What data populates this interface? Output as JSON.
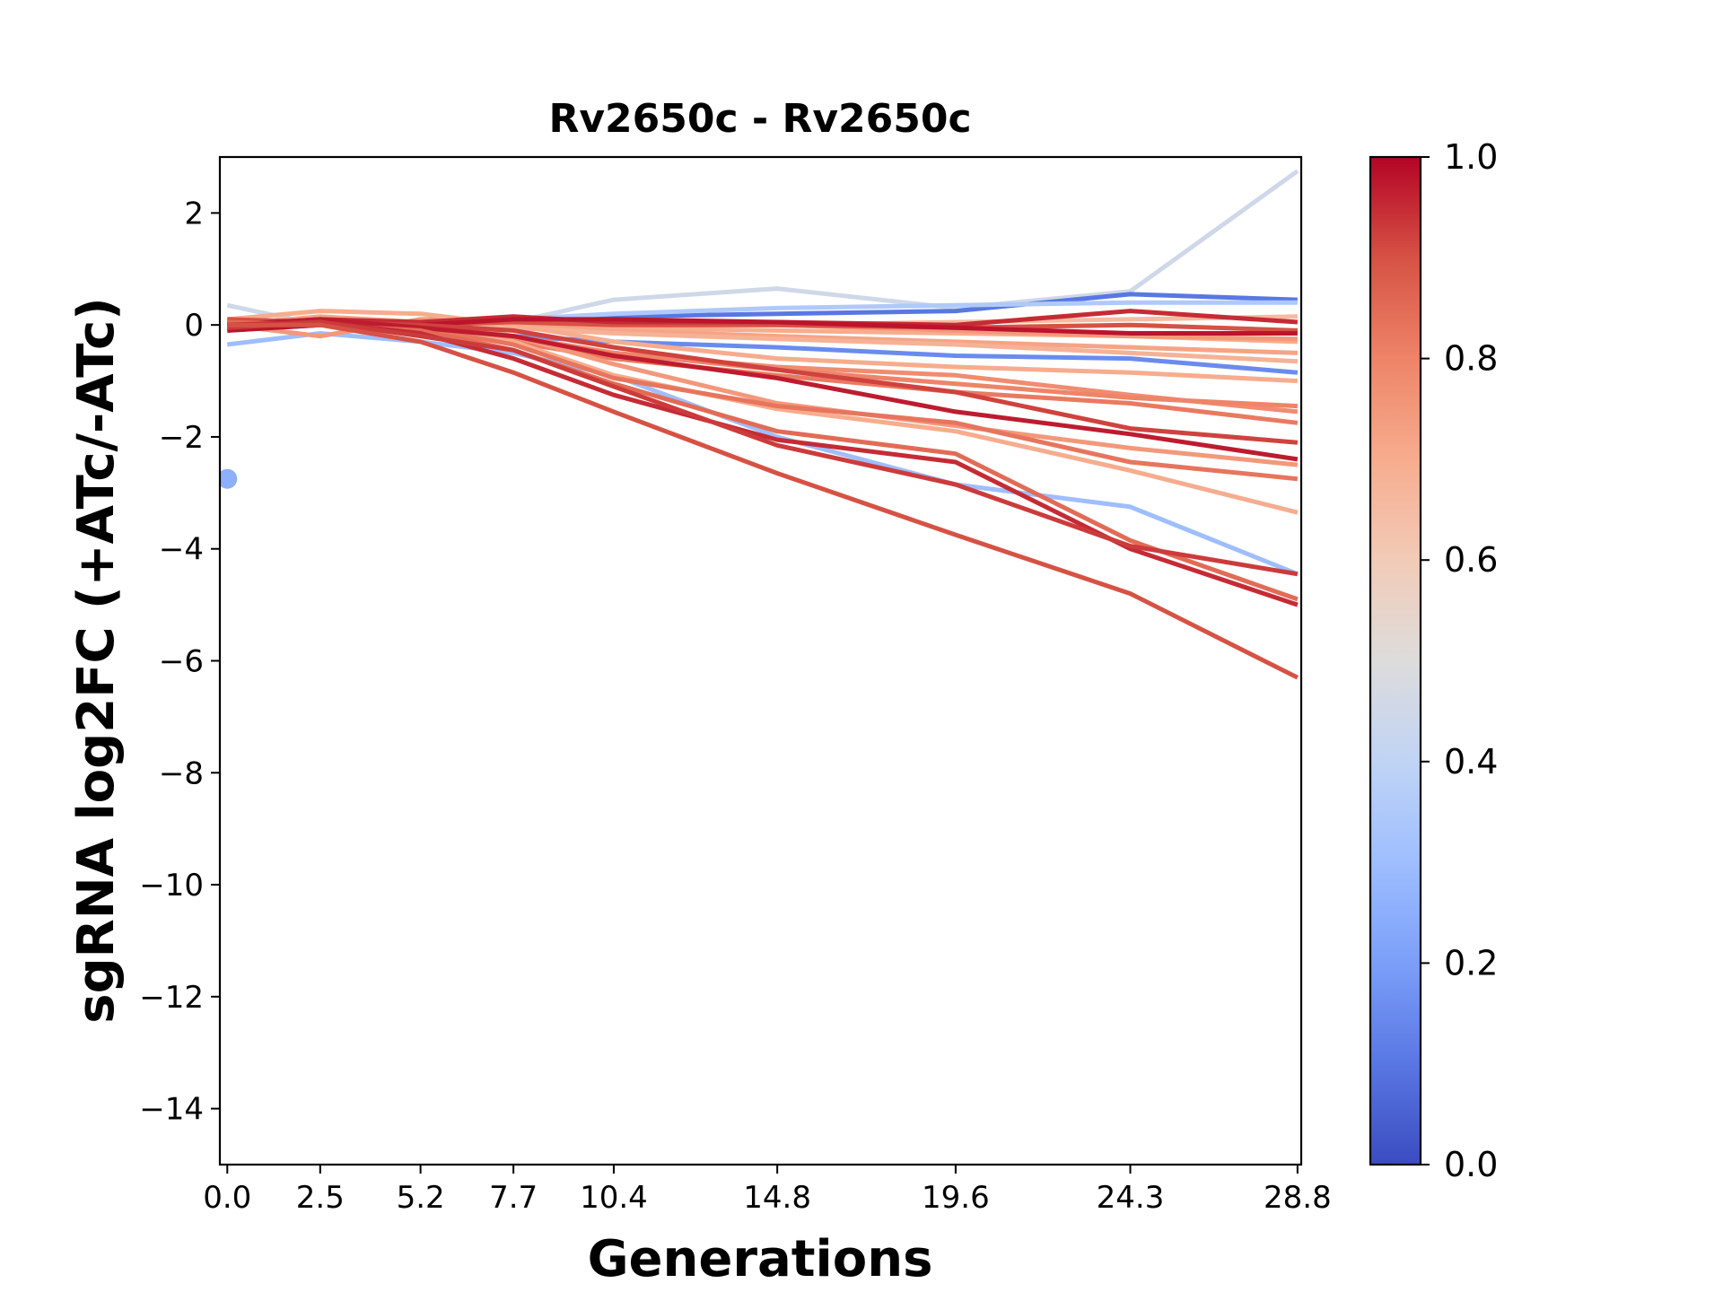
{
  "chart_data": {
    "type": "line",
    "title": "Rv2650c - Rv2650c",
    "xlabel": "Generations",
    "ylabel": "sgRNA log2FC (+ATc/-ATc)",
    "x": [
      0.0,
      2.5,
      5.2,
      7.7,
      10.4,
      14.8,
      19.6,
      24.3,
      28.8
    ],
    "x_tick_labels": [
      "0.0",
      "2.5",
      "5.2",
      "7.7",
      "10.4",
      "14.8",
      "19.6",
      "24.3",
      "28.8"
    ],
    "xlim": [
      -0.2,
      28.9
    ],
    "ylim": [
      -15,
      3
    ],
    "y_ticks": [
      2,
      0,
      -2,
      -4,
      -6,
      -8,
      -10,
      -12,
      -14
    ],
    "y_tick_labels": [
      "2",
      "0",
      "−2",
      "−4",
      "−6",
      "−8",
      "−10",
      "−12",
      "−14"
    ],
    "grid": false,
    "colorbar": {
      "colormap": "coolwarm",
      "range": [
        0.0,
        1.0
      ],
      "ticks": [
        0.0,
        0.2,
        0.4,
        0.6,
        0.8,
        1.0
      ],
      "tick_labels": [
        "0.0",
        "0.2",
        "0.4",
        "0.6",
        "0.8",
        "1.0"
      ]
    },
    "points": [
      {
        "x": 0.0,
        "y": -2.75,
        "value": 0.25
      }
    ],
    "series": [
      {
        "value": 0.45,
        "values": [
          0.35,
          0.0,
          -0.1,
          0.05,
          0.45,
          0.65,
          0.3,
          0.6,
          2.75
        ]
      },
      {
        "value": 0.1,
        "values": [
          0.0,
          0.05,
          0.0,
          0.1,
          0.15,
          0.2,
          0.25,
          0.55,
          0.45
        ]
      },
      {
        "value": 0.35,
        "values": [
          0.05,
          0.1,
          0.05,
          0.1,
          0.2,
          0.3,
          0.35,
          0.4,
          0.4
        ]
      },
      {
        "value": 0.15,
        "values": [
          -0.1,
          0.0,
          -0.1,
          -0.2,
          -0.3,
          -0.4,
          -0.55,
          -0.6,
          -0.85
        ]
      },
      {
        "value": 0.3,
        "values": [
          -0.35,
          -0.15,
          -0.3,
          -0.5,
          -0.9,
          -2.0,
          -2.85,
          -3.25,
          -4.45
        ]
      },
      {
        "value": 0.65,
        "values": [
          0.1,
          0.05,
          0.05,
          0.0,
          0.0,
          0.0,
          0.05,
          0.1,
          0.15
        ]
      },
      {
        "value": 0.7,
        "values": [
          0.05,
          0.1,
          0.0,
          0.0,
          -0.05,
          -0.1,
          -0.15,
          -0.2,
          -0.3
        ]
      },
      {
        "value": 0.72,
        "values": [
          0.0,
          0.15,
          0.05,
          0.0,
          -0.1,
          -0.2,
          -0.3,
          -0.4,
          -0.5
        ]
      },
      {
        "value": 0.68,
        "values": [
          -0.05,
          0.0,
          0.0,
          -0.05,
          -0.15,
          -0.25,
          -0.35,
          -0.5,
          -0.65
        ]
      },
      {
        "value": 0.75,
        "values": [
          0.0,
          -0.2,
          0.1,
          0.1,
          0.05,
          0.0,
          -0.1,
          -0.2,
          -0.25
        ]
      },
      {
        "value": 0.7,
        "values": [
          0.1,
          0.25,
          0.2,
          0.0,
          -0.3,
          -0.6,
          -0.75,
          -0.85,
          -1.0
        ]
      },
      {
        "value": 0.78,
        "values": [
          0.0,
          0.1,
          0.05,
          -0.2,
          -0.5,
          -0.75,
          -0.9,
          -1.25,
          -1.55
        ]
      },
      {
        "value": 0.82,
        "values": [
          0.05,
          0.0,
          0.0,
          -0.3,
          -0.6,
          -0.9,
          -1.2,
          -1.4,
          -1.75
        ]
      },
      {
        "value": 0.8,
        "values": [
          0.0,
          0.05,
          -0.05,
          -0.25,
          -0.5,
          -0.8,
          -1.05,
          -1.3,
          -1.45
        ]
      },
      {
        "value": 0.75,
        "values": [
          0.05,
          0.1,
          0.0,
          -0.2,
          -0.7,
          -1.4,
          -1.8,
          -2.2,
          -2.5
        ]
      },
      {
        "value": 0.7,
        "values": [
          -0.05,
          0.0,
          -0.1,
          -0.3,
          -0.9,
          -1.5,
          -1.9,
          -2.6,
          -3.35
        ]
      },
      {
        "value": 0.83,
        "values": [
          0.0,
          0.1,
          -0.05,
          -0.35,
          -0.95,
          -1.45,
          -1.75,
          -2.45,
          -2.75
        ]
      },
      {
        "value": 0.9,
        "values": [
          0.1,
          0.05,
          0.0,
          0.05,
          0.0,
          0.0,
          -0.05,
          0.0,
          -0.1
        ]
      },
      {
        "value": 0.95,
        "values": [
          0.0,
          0.1,
          0.05,
          0.15,
          0.05,
          0.05,
          0.0,
          0.25,
          0.05
        ]
      },
      {
        "value": 0.98,
        "values": [
          -0.1,
          0.0,
          0.0,
          0.1,
          0.1,
          0.05,
          -0.05,
          -0.15,
          -0.15
        ]
      },
      {
        "value": 0.92,
        "values": [
          0.05,
          0.05,
          0.0,
          -0.1,
          -0.4,
          -0.8,
          -1.2,
          -1.85,
          -2.1
        ]
      },
      {
        "value": 0.97,
        "values": [
          0.0,
          0.1,
          -0.05,
          -0.2,
          -0.55,
          -0.95,
          -1.55,
          -1.95,
          -2.4
        ]
      },
      {
        "value": 0.85,
        "values": [
          0.05,
          0.0,
          -0.1,
          -0.45,
          -1.05,
          -1.9,
          -2.3,
          -3.85,
          -4.9
        ]
      },
      {
        "value": 0.95,
        "values": [
          0.0,
          0.05,
          -0.15,
          -0.6,
          -1.25,
          -2.05,
          -2.45,
          -4.0,
          -5.0
        ]
      },
      {
        "value": 0.93,
        "values": [
          -0.05,
          0.05,
          -0.2,
          -0.45,
          -1.1,
          -2.15,
          -2.85,
          -3.95,
          -4.45
        ]
      },
      {
        "value": 0.9,
        "values": [
          0.0,
          0.0,
          -0.3,
          -0.85,
          -1.55,
          -2.65,
          -3.75,
          -4.8,
          -6.3
        ]
      }
    ]
  }
}
